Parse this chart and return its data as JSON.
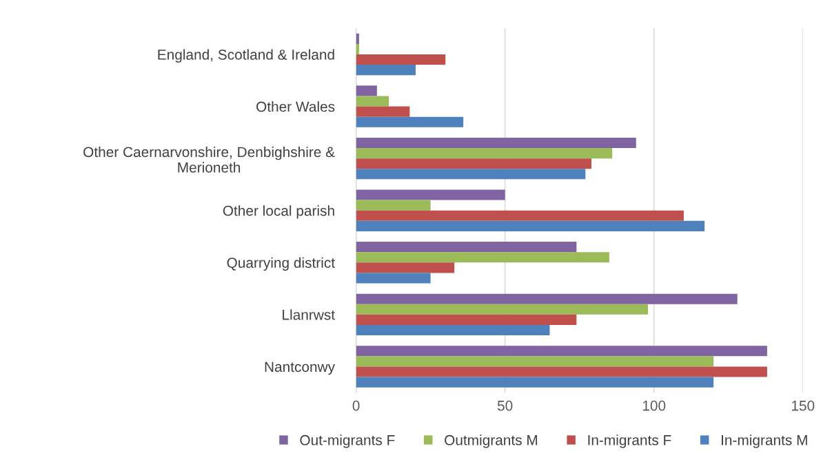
{
  "chart_data": {
    "type": "bar",
    "orientation": "horizontal",
    "categories": [
      "England, Scotland & Ireland",
      "Other Wales",
      "Other Caernarvonshire, Denbighshire &\nMerioneth",
      "Other local parish",
      "Quarrying district",
      "Llanrwst",
      "Nantconwy"
    ],
    "series": [
      {
        "name": "Out-migrants F",
        "color": "#8064a2",
        "values": [
          1,
          7,
          94,
          50,
          74,
          128,
          138
        ]
      },
      {
        "name": "Outmigrants M",
        "color": "#9bbb59",
        "values": [
          1,
          11,
          86,
          25,
          85,
          98,
          120
        ]
      },
      {
        "name": "In-migrants F",
        "color": "#c0504d",
        "values": [
          30,
          18,
          79,
          110,
          33,
          74,
          138
        ]
      },
      {
        "name": "In-migrants M",
        "color": "#4f81bd",
        "values": [
          20,
          36,
          77,
          117,
          25,
          65,
          120
        ]
      }
    ],
    "xlim": [
      0,
      150
    ],
    "xticks": [
      0,
      50,
      100,
      150
    ],
    "grid": "x",
    "legend": "bottom"
  }
}
